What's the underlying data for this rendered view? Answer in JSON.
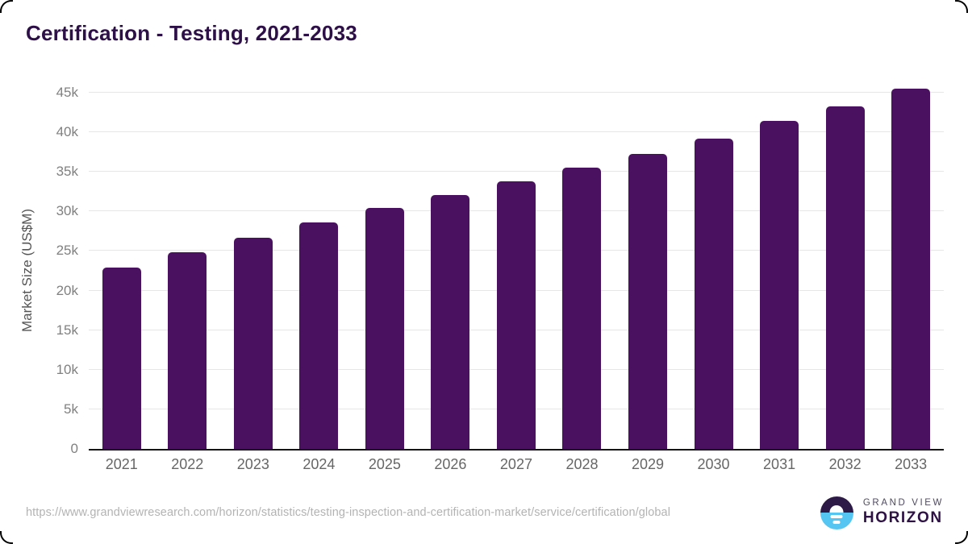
{
  "title": "Certification - Testing, 2021-2033",
  "source_url": "https://www.grandviewresearch.com/horizon/statistics/testing-inspection-and-certification-market/service/certification/global",
  "branding": {
    "line1": "GRAND VIEW",
    "line2": "HORIZON",
    "icon": "horizon-sun-logo",
    "icon_colors": {
      "top": "#2e1a47",
      "bottom": "#55c5f1",
      "sun": "#ffffff"
    }
  },
  "colors": {
    "title": "#2e1048",
    "bar": "#4a1160",
    "gridline": "#e6e6e6",
    "axis_line": "#141414",
    "y_tick": "#808080",
    "x_tick": "#666666",
    "source": "#b3b3b3"
  },
  "chart_data": {
    "type": "bar",
    "categories": [
      "2021",
      "2022",
      "2023",
      "2024",
      "2025",
      "2026",
      "2027",
      "2028",
      "2029",
      "2030",
      "2031",
      "2032",
      "2033"
    ],
    "values": [
      22900,
      24800,
      26700,
      28600,
      30400,
      32100,
      33800,
      35500,
      37300,
      39200,
      41400,
      43300,
      45500
    ],
    "title": "Certification - Testing, 2021-2033",
    "xlabel": "",
    "ylabel": "Market Size (US$M)",
    "ylim": [
      0,
      45000
    ],
    "ytick_step": 5000,
    "ytick_labels": [
      "0",
      "5k",
      "10k",
      "15k",
      "20k",
      "25k",
      "30k",
      "35k",
      "40k",
      "45k"
    ],
    "grid": true,
    "legend": false,
    "bar_color": "#4a1160"
  }
}
